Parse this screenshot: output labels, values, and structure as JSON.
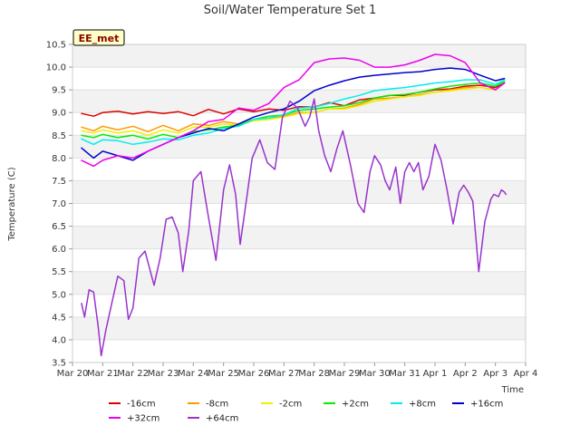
{
  "chart_data": {
    "type": "line",
    "title": "Soil/Water Temperature Set 1",
    "xlabel": "Time",
    "ylabel": "Temperature (C)",
    "badge": "EE_met",
    "ylim": [
      3.5,
      10.5
    ],
    "yticks": [
      "3.5",
      "4.0",
      "4.5",
      "5.0",
      "5.5",
      "6.0",
      "6.5",
      "7.0",
      "7.5",
      "8.0",
      "8.5",
      "9.0",
      "9.5",
      "10.0",
      "10.5"
    ],
    "xlim": [
      0,
      15
    ],
    "xticks": [
      "Mar 20",
      "Mar 21",
      "Mar 22",
      "Mar 23",
      "Mar 24",
      "Mar 25",
      "Mar 26",
      "Mar 27",
      "Mar 28",
      "Mar 29",
      "Mar 30",
      "Mar 31",
      "Apr 1",
      "Apr 2",
      "Apr 3",
      "Apr 4"
    ],
    "grid": true,
    "series": [
      {
        "name": "-16cm",
        "color": "#dd0000",
        "x": [
          0.3,
          0.7,
          1.0,
          1.5,
          2.0,
          2.5,
          3.0,
          3.5,
          4.0,
          4.5,
          5.0,
          5.5,
          6.0,
          6.5,
          7.0,
          7.5,
          8.0,
          8.5,
          9.0,
          9.5,
          10.0,
          10.5,
          11.0,
          11.5,
          12.0,
          12.5,
          13.0,
          13.5,
          14.0,
          14.3
        ],
        "y": [
          8.98,
          8.92,
          9.0,
          9.03,
          8.97,
          9.02,
          8.98,
          9.02,
          8.93,
          9.07,
          8.97,
          9.08,
          9.02,
          9.08,
          9.05,
          9.13,
          9.12,
          9.22,
          9.15,
          9.28,
          9.32,
          9.38,
          9.38,
          9.45,
          9.5,
          9.52,
          9.58,
          9.6,
          9.55,
          9.65
        ]
      },
      {
        "name": "-8cm",
        "color": "#ff9900",
        "x": [
          0.3,
          0.7,
          1.0,
          1.5,
          2.0,
          2.5,
          3.0,
          3.5,
          4.0,
          4.5,
          5.0,
          5.5,
          6.0,
          6.5,
          7.0,
          7.5,
          8.0,
          8.5,
          9.0,
          9.5,
          10.0,
          10.5,
          11.0,
          11.5,
          12.0,
          12.5,
          13.0,
          13.5,
          14.0,
          14.3
        ],
        "y": [
          8.68,
          8.6,
          8.7,
          8.62,
          8.7,
          8.58,
          8.72,
          8.6,
          8.75,
          8.72,
          8.8,
          8.75,
          8.85,
          8.88,
          8.92,
          9.0,
          9.0,
          9.08,
          9.1,
          9.18,
          9.3,
          9.32,
          9.35,
          9.4,
          9.45,
          9.5,
          9.55,
          9.55,
          9.5,
          9.65
        ]
      },
      {
        "name": "-2cm",
        "color": "#eeee00",
        "x": [
          0.3,
          0.7,
          1.0,
          1.5,
          2.0,
          2.5,
          3.0,
          3.5,
          4.0,
          4.5,
          5.0,
          5.5,
          6.0,
          6.5,
          7.0,
          7.5,
          8.0,
          8.5,
          9.0,
          9.5,
          10.0,
          10.5,
          11.0,
          11.5,
          12.0,
          12.5,
          13.0,
          13.5,
          14.0,
          14.3
        ],
        "y": [
          8.6,
          8.55,
          8.62,
          8.55,
          8.6,
          8.5,
          8.62,
          8.55,
          8.68,
          8.68,
          8.75,
          8.72,
          8.82,
          8.85,
          8.9,
          8.98,
          9.0,
          9.08,
          9.08,
          9.15,
          9.25,
          9.3,
          9.35,
          9.38,
          9.45,
          9.48,
          9.52,
          9.55,
          9.5,
          9.65
        ]
      },
      {
        "name": "+2cm",
        "color": "#00ee00",
        "x": [
          0.3,
          0.7,
          1.0,
          1.5,
          2.0,
          2.5,
          3.0,
          3.5,
          4.0,
          4.5,
          5.0,
          5.5,
          6.0,
          6.5,
          7.0,
          7.5,
          8.0,
          8.5,
          9.0,
          9.5,
          10.0,
          10.5,
          11.0,
          11.5,
          12.0,
          12.5,
          13.0,
          13.5,
          14.0,
          14.3
        ],
        "y": [
          8.5,
          8.45,
          8.52,
          8.45,
          8.5,
          8.42,
          8.52,
          8.45,
          8.58,
          8.62,
          8.68,
          8.72,
          8.85,
          8.92,
          8.95,
          9.05,
          9.08,
          9.12,
          9.15,
          9.22,
          9.32,
          9.38,
          9.4,
          9.45,
          9.52,
          9.58,
          9.62,
          9.65,
          9.58,
          9.68
        ]
      },
      {
        "name": "+8cm",
        "color": "#00eeee",
        "x": [
          0.3,
          0.7,
          1.0,
          1.5,
          2.0,
          2.5,
          3.0,
          3.5,
          4.0,
          4.5,
          5.0,
          5.5,
          6.0,
          6.5,
          7.0,
          7.5,
          8.0,
          8.5,
          9.0,
          9.5,
          10.0,
          10.5,
          11.0,
          11.5,
          12.0,
          12.5,
          13.0,
          13.5,
          14.0,
          14.3
        ],
        "y": [
          8.42,
          8.3,
          8.4,
          8.38,
          8.3,
          8.35,
          8.42,
          8.4,
          8.5,
          8.55,
          8.65,
          8.7,
          8.85,
          8.88,
          8.95,
          9.1,
          9.12,
          9.2,
          9.3,
          9.38,
          9.48,
          9.52,
          9.55,
          9.6,
          9.65,
          9.68,
          9.72,
          9.72,
          9.62,
          9.72
        ]
      },
      {
        "name": "+16cm",
        "color": "#0000cc",
        "x": [
          0.3,
          0.7,
          1.0,
          1.5,
          2.0,
          2.5,
          3.0,
          3.5,
          4.0,
          4.5,
          5.0,
          5.5,
          6.0,
          6.5,
          7.0,
          7.5,
          8.0,
          8.5,
          9.0,
          9.5,
          10.0,
          10.5,
          11.0,
          11.5,
          12.0,
          12.5,
          13.0,
          13.5,
          14.0,
          14.3
        ],
        "y": [
          8.22,
          8.0,
          8.15,
          8.05,
          7.95,
          8.15,
          8.3,
          8.45,
          8.55,
          8.65,
          8.6,
          8.75,
          8.9,
          9.0,
          9.08,
          9.25,
          9.48,
          9.6,
          9.7,
          9.78,
          9.82,
          9.85,
          9.88,
          9.9,
          9.95,
          9.98,
          9.95,
          9.82,
          9.7,
          9.75
        ]
      },
      {
        "name": "+32cm",
        "color": "#ee00ee",
        "x": [
          0.3,
          0.7,
          1.0,
          1.5,
          2.0,
          2.5,
          3.0,
          3.5,
          4.0,
          4.5,
          5.0,
          5.5,
          6.0,
          6.5,
          7.0,
          7.5,
          8.0,
          8.5,
          9.0,
          9.5,
          10.0,
          10.5,
          11.0,
          11.5,
          12.0,
          12.5,
          13.0,
          13.5,
          14.0,
          14.3
        ],
        "y": [
          7.95,
          7.82,
          7.95,
          8.05,
          8.0,
          8.15,
          8.3,
          8.45,
          8.6,
          8.8,
          8.85,
          9.1,
          9.05,
          9.2,
          9.55,
          9.72,
          10.1,
          10.18,
          10.2,
          10.15,
          10.0,
          10.0,
          10.05,
          10.15,
          10.28,
          10.25,
          10.1,
          9.65,
          9.5,
          9.65
        ]
      },
      {
        "name": "+64cm",
        "color": "#9933cc",
        "x": [
          0.3,
          0.4,
          0.55,
          0.7,
          0.85,
          0.95,
          1.1,
          1.3,
          1.5,
          1.7,
          1.85,
          2.0,
          2.2,
          2.4,
          2.7,
          2.9,
          3.1,
          3.3,
          3.5,
          3.65,
          3.85,
          4.0,
          4.25,
          4.5,
          4.75,
          5.0,
          5.2,
          5.4,
          5.55,
          5.7,
          5.95,
          6.2,
          6.45,
          6.7,
          6.95,
          7.2,
          7.45,
          7.7,
          7.85,
          8.0,
          8.15,
          8.35,
          8.55,
          8.75,
          8.95,
          9.2,
          9.45,
          9.65,
          9.85,
          10.0,
          10.2,
          10.35,
          10.5,
          10.7,
          10.85,
          11.0,
          11.15,
          11.3,
          11.45,
          11.6,
          11.8,
          12.0,
          12.2,
          12.4,
          12.6,
          12.8,
          12.95,
          13.1,
          13.25,
          13.45,
          13.65,
          13.85,
          13.95,
          14.1,
          14.2,
          14.3,
          14.35
        ],
        "y": [
          4.8,
          4.5,
          5.1,
          5.05,
          4.3,
          3.65,
          4.2,
          4.8,
          5.4,
          5.3,
          4.45,
          4.7,
          5.8,
          5.95,
          5.2,
          5.8,
          6.65,
          6.7,
          6.35,
          5.5,
          6.4,
          7.5,
          7.7,
          6.7,
          5.75,
          7.3,
          7.85,
          7.2,
          6.1,
          6.8,
          8.0,
          8.4,
          7.9,
          7.75,
          8.9,
          9.25,
          9.1,
          8.7,
          8.9,
          9.3,
          8.6,
          8.05,
          7.7,
          8.2,
          8.6,
          7.85,
          7.0,
          6.8,
          7.7,
          8.05,
          7.85,
          7.5,
          7.3,
          7.8,
          7.0,
          7.7,
          7.9,
          7.7,
          7.9,
          7.3,
          7.6,
          8.3,
          7.95,
          7.3,
          6.55,
          7.25,
          7.4,
          7.25,
          7.05,
          5.5,
          6.6,
          7.1,
          7.2,
          7.15,
          7.3,
          7.25,
          7.2
        ]
      }
    ]
  }
}
